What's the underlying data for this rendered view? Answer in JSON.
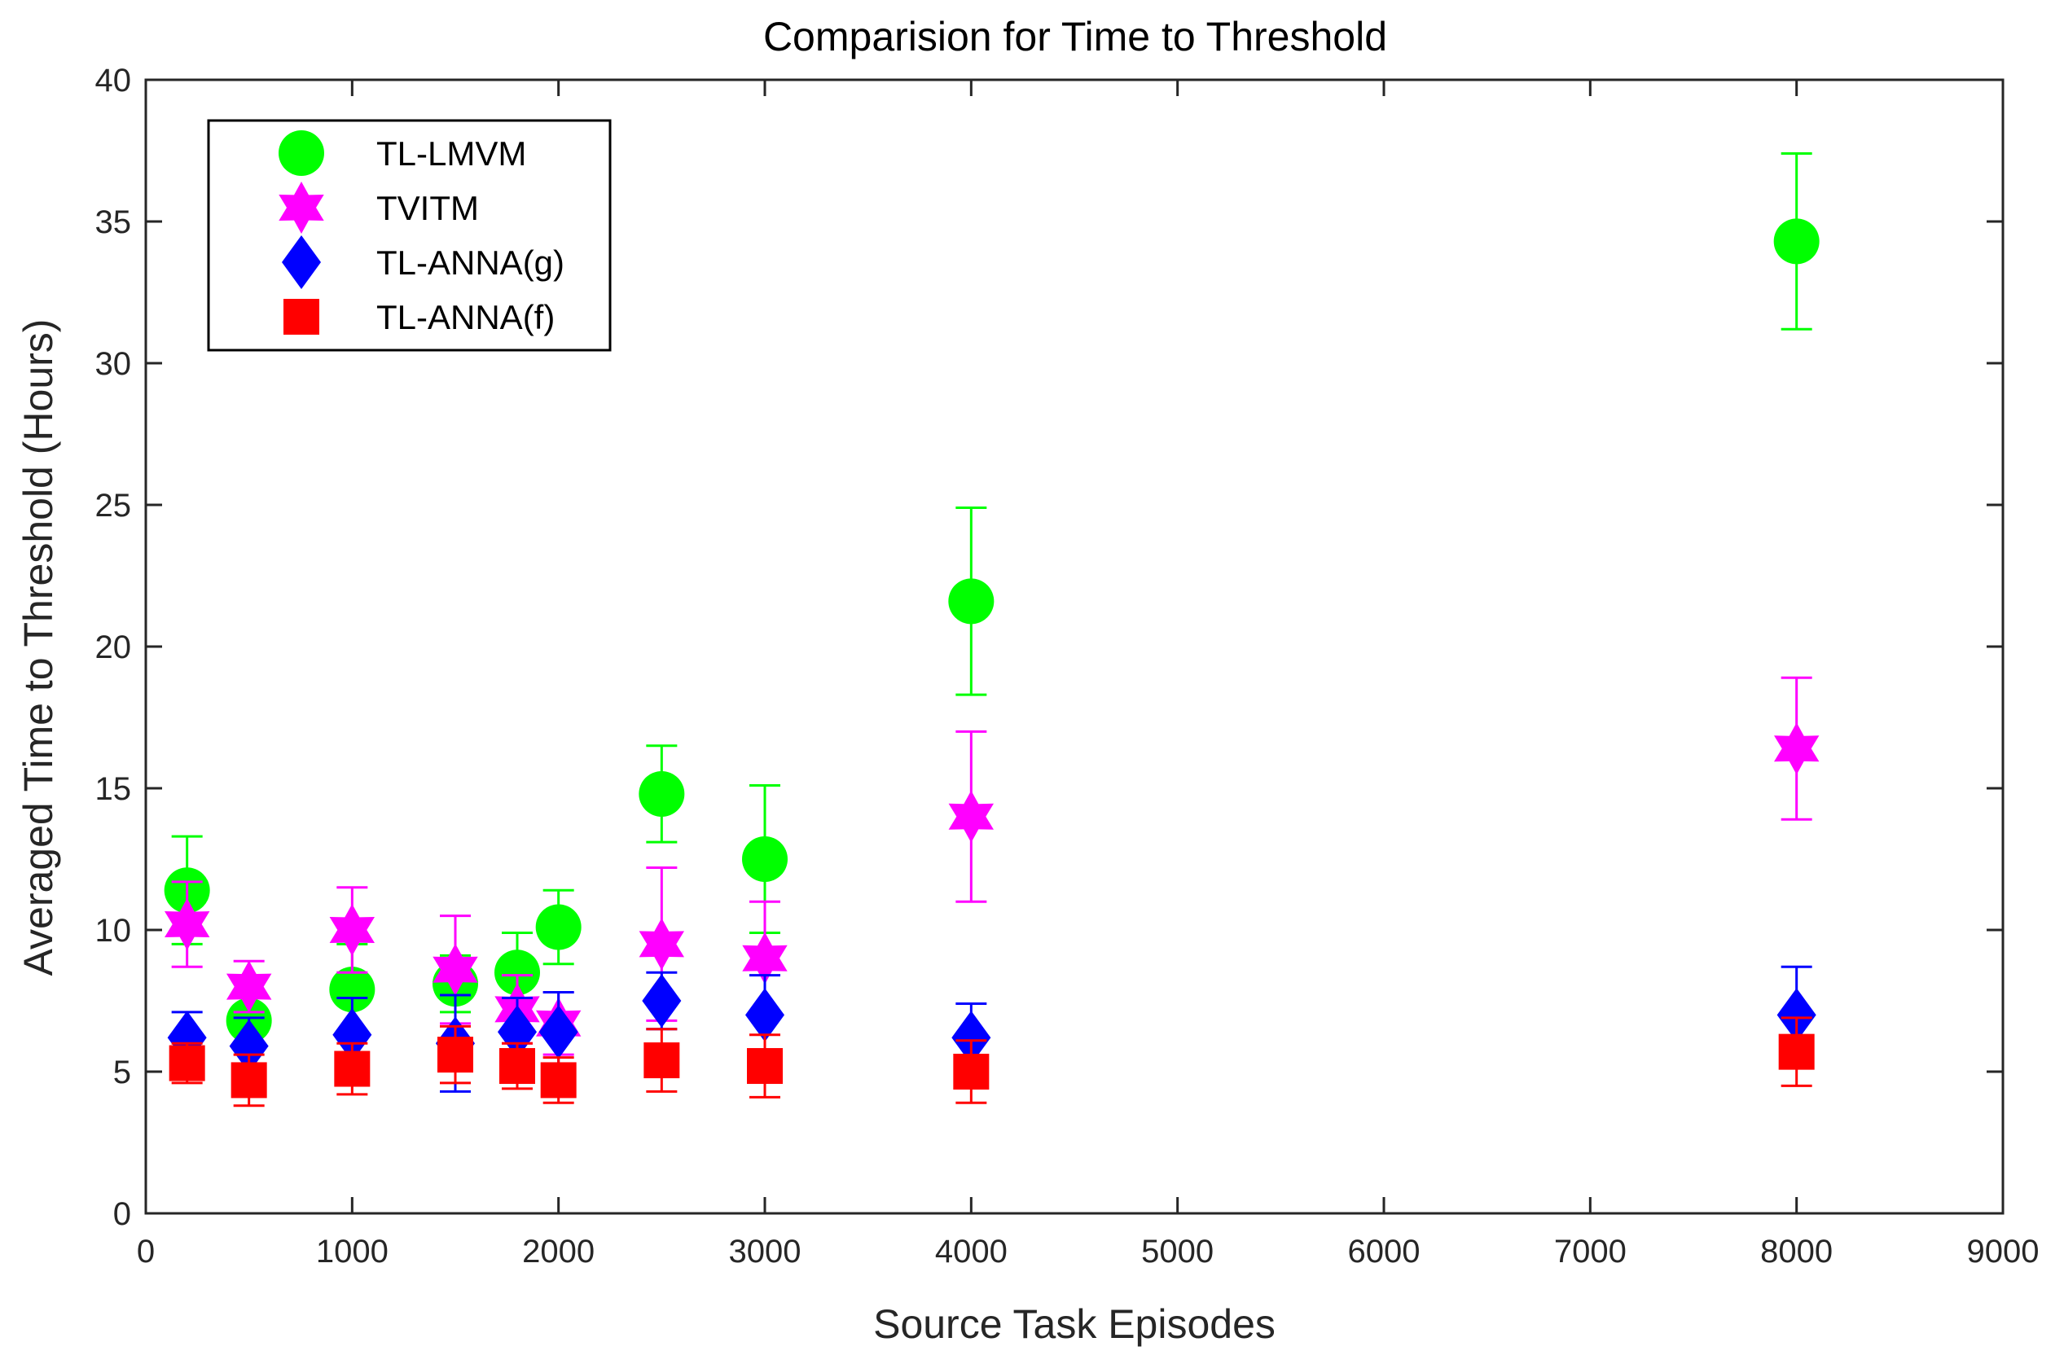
{
  "chart_data": {
    "type": "scatter",
    "title": "Comparision for Time to Threshold",
    "xlabel": "Source Task Episodes",
    "ylabel": "Averaged Time to Threshold (Hours)",
    "xlim": [
      0,
      9000
    ],
    "ylim": [
      0,
      40
    ],
    "xticks": [
      0,
      1000,
      2000,
      3000,
      4000,
      5000,
      6000,
      7000,
      8000,
      9000
    ],
    "yticks": [
      0,
      5,
      10,
      15,
      20,
      25,
      30,
      35,
      40
    ],
    "grid": false,
    "legend_position": "top-left",
    "series": [
      {
        "name": "TL-LMVM",
        "marker": "circle",
        "color": "#00ff00",
        "x": [
          200,
          500,
          1000,
          1500,
          1800,
          2000,
          2500,
          3000,
          4000,
          8000
        ],
        "y": [
          11.4,
          6.8,
          7.9,
          8.1,
          8.5,
          10.1,
          14.8,
          12.5,
          21.6,
          34.3
        ],
        "err": [
          1.9,
          0.9,
          1.6,
          1.0,
          1.4,
          1.3,
          1.7,
          2.6,
          3.3,
          3.1
        ]
      },
      {
        "name": "TVITM",
        "marker": "hexagram",
        "color": "#ff00ff",
        "x": [
          200,
          500,
          1000,
          1500,
          1800,
          2000,
          2500,
          3000,
          4000,
          8000
        ],
        "y": [
          10.2,
          8.0,
          10.0,
          8.6,
          7.2,
          6.7,
          9.5,
          9.0,
          14.0,
          16.4
        ],
        "err": [
          1.5,
          0.9,
          1.5,
          1.9,
          1.2,
          1.1,
          2.7,
          2.0,
          3.0,
          2.5
        ]
      },
      {
        "name": "TL-ANNA(g)",
        "marker": "diamond",
        "color": "#0000ff",
        "x": [
          200,
          500,
          1000,
          1500,
          1800,
          2000,
          2500,
          3000,
          4000,
          8000
        ],
        "y": [
          6.2,
          5.9,
          6.3,
          6.0,
          6.4,
          6.4,
          7.5,
          7.0,
          6.2,
          7.0
        ],
        "err": [
          0.9,
          1.0,
          1.3,
          1.7,
          1.2,
          1.4,
          1.0,
          1.4,
          1.2,
          1.7
        ]
      },
      {
        "name": "TL-ANNA(f)",
        "marker": "square",
        "color": "#ff0000",
        "x": [
          200,
          500,
          1000,
          1500,
          1800,
          2000,
          2500,
          3000,
          4000,
          8000
        ],
        "y": [
          5.3,
          4.7,
          5.1,
          5.6,
          5.2,
          4.7,
          5.4,
          5.2,
          5.0,
          5.7
        ],
        "err": [
          0.7,
          0.9,
          0.9,
          1.0,
          0.8,
          0.8,
          1.1,
          1.1,
          1.1,
          1.2
        ]
      }
    ]
  }
}
